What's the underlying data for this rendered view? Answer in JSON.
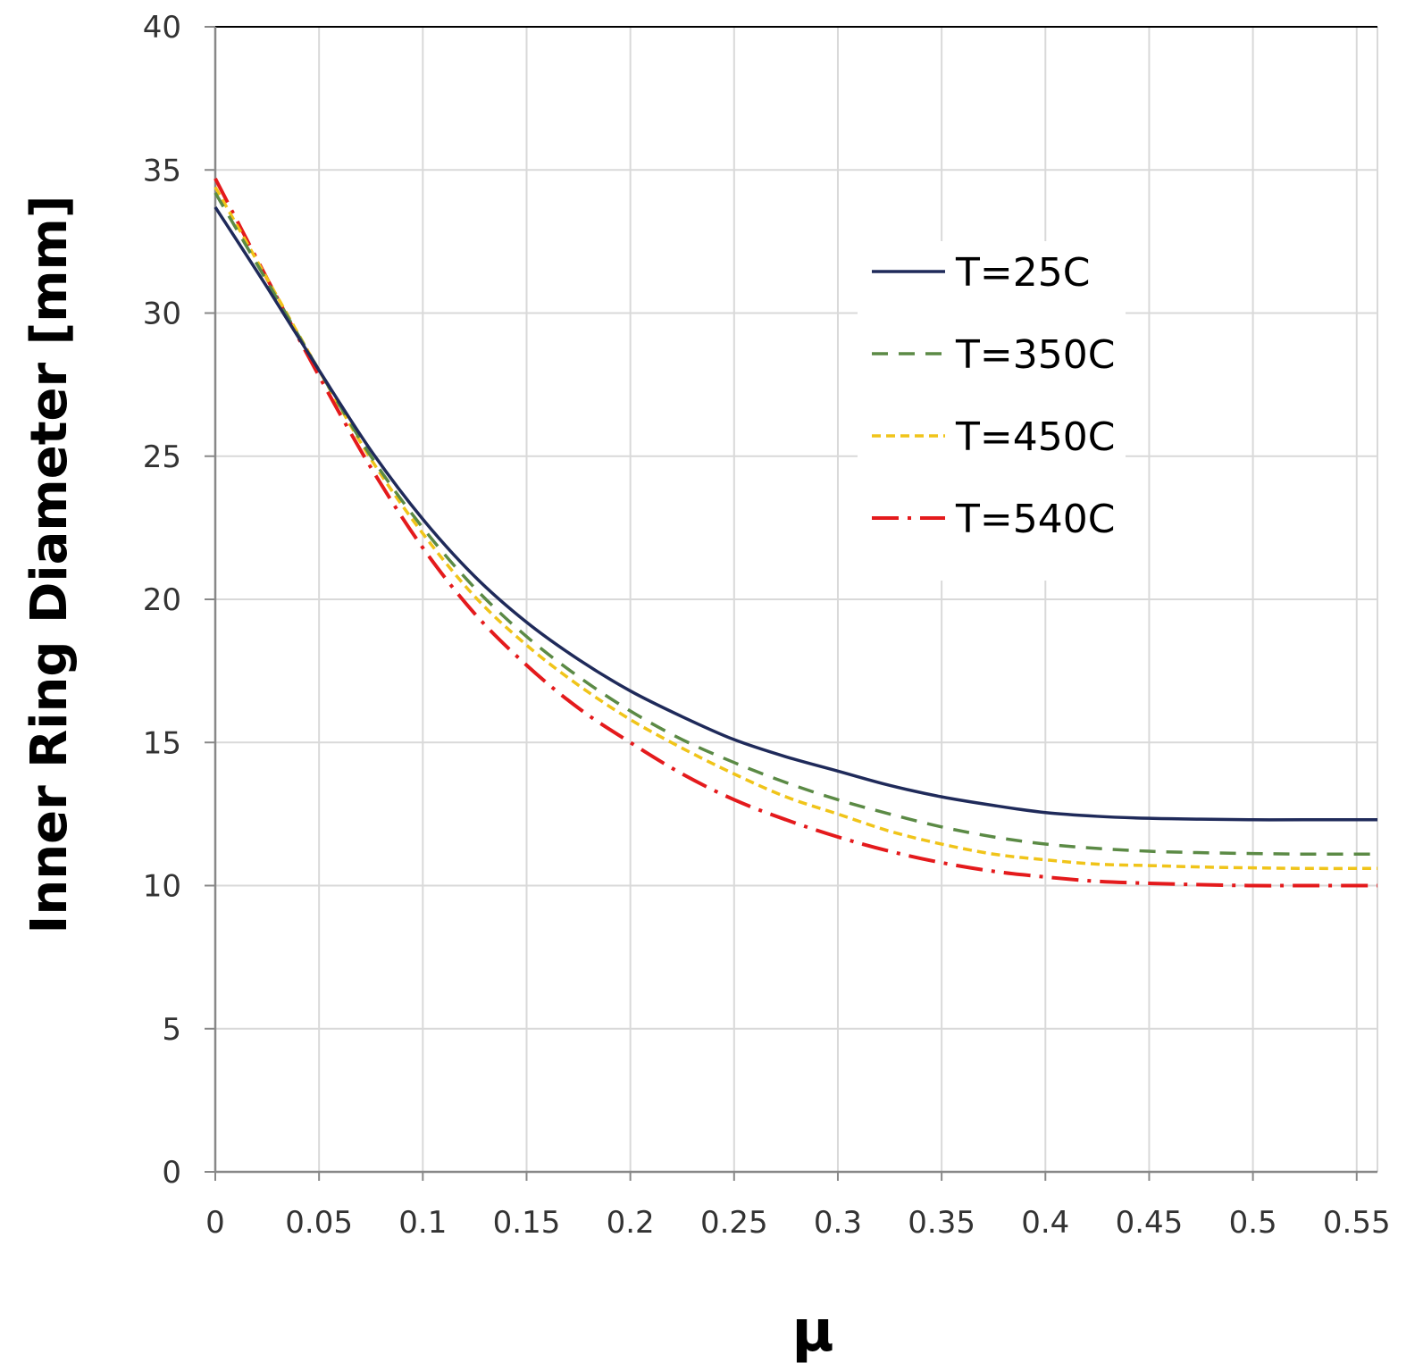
{
  "chart_data": {
    "type": "line",
    "title": "",
    "xlabel": "μ",
    "ylabel": "Inner Ring Diameter [mm]",
    "xlim": [
      0,
      0.56
    ],
    "ylim": [
      0,
      40
    ],
    "x_ticks": [
      "0",
      "0.05",
      "0.1",
      "0.15",
      "0.2",
      "0.25",
      "0.3",
      "0.35",
      "0.4",
      "0.45",
      "0.5",
      "0.55"
    ],
    "y_ticks": [
      "0",
      "5",
      "10",
      "15",
      "20",
      "25",
      "30",
      "35",
      "40"
    ],
    "grid": true,
    "legend_position": "upper-right",
    "x": [
      0,
      0.025,
      0.05,
      0.075,
      0.1,
      0.125,
      0.15,
      0.175,
      0.2,
      0.225,
      0.25,
      0.275,
      0.3,
      0.325,
      0.35,
      0.375,
      0.4,
      0.425,
      0.45,
      0.475,
      0.5,
      0.525,
      0.56
    ],
    "series": [
      {
        "name": "T=25C",
        "color": "#1f2a5a",
        "dash": "solid",
        "values": [
          33.7,
          30.9,
          28.0,
          25.2,
          22.8,
          20.8,
          19.2,
          17.9,
          16.8,
          15.9,
          15.1,
          14.5,
          14.0,
          13.5,
          13.1,
          12.8,
          12.55,
          12.42,
          12.35,
          12.32,
          12.3,
          12.3,
          12.3
        ]
      },
      {
        "name": "T=350C",
        "color": "#5b8a45",
        "dash": "dashed",
        "values": [
          34.2,
          31.1,
          28.0,
          25.0,
          22.5,
          20.4,
          18.7,
          17.3,
          16.1,
          15.1,
          14.3,
          13.6,
          13.0,
          12.5,
          12.05,
          11.7,
          11.45,
          11.3,
          11.2,
          11.15,
          11.12,
          11.1,
          11.1
        ]
      },
      {
        "name": "T=450C",
        "color": "#f0c419",
        "dash": "short-dashed",
        "values": [
          34.4,
          31.2,
          28.0,
          24.9,
          22.3,
          20.1,
          18.4,
          17.0,
          15.8,
          14.8,
          13.9,
          13.1,
          12.5,
          11.9,
          11.45,
          11.1,
          10.9,
          10.75,
          10.7,
          10.65,
          10.62,
          10.6,
          10.6
        ]
      },
      {
        "name": "T=540C",
        "color": "#e41a1c",
        "dash": "dash-dot",
        "values": [
          34.7,
          31.2,
          27.8,
          24.6,
          21.8,
          19.5,
          17.7,
          16.2,
          15.0,
          13.9,
          13.0,
          12.3,
          11.7,
          11.2,
          10.8,
          10.5,
          10.3,
          10.15,
          10.08,
          10.03,
          10.0,
          10.0,
          10.0
        ]
      }
    ]
  }
}
